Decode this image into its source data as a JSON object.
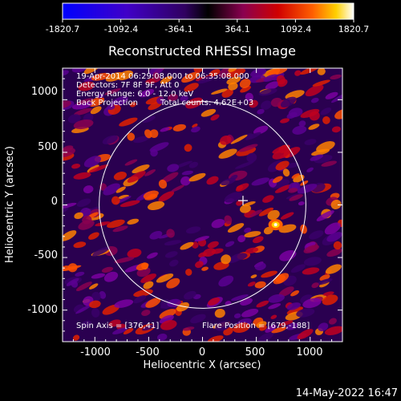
{
  "colorbar": {
    "tick_labels": [
      "-1820.7",
      "-1092.4",
      "-364.1",
      "364.1",
      "1092.4",
      "1820.7"
    ],
    "colors": [
      "#0000ff",
      "#5a00c0",
      "#3a0070",
      "#000000",
      "#8a0060",
      "#d00000",
      "#ff6000",
      "#ffd000",
      "#ffffff"
    ]
  },
  "plot": {
    "title": "Reconstructed RHESSI Image",
    "xlabel": "Heliocentric X (arcsec)",
    "ylabel": "Heliocentric Y (arcsec)",
    "x_tick_labels": [
      "-1000",
      "-500",
      "0",
      "500",
      "1000"
    ],
    "y_tick_labels": [
      "1000",
      "500",
      "0",
      "-500",
      "-1000"
    ],
    "annotations": {
      "time_range": "19-Apr-2014 06:29:08.000 to 06:35:08.000",
      "detectors": "Detectors: 7F 8F 9F, Att 0",
      "energy_range": "Energy Range: 6.0 - 12.0 keV",
      "method": "Back Projection",
      "total_counts": "Total counts: 4.62E+03",
      "spin_axis": "Spin Axis = [376,41]",
      "flare_position": "Flare Position = [679,-188]"
    }
  },
  "chart_data": {
    "type": "heatmap",
    "title": "Reconstructed RHESSI Image",
    "xlabel": "Heliocentric X (arcsec)",
    "ylabel": "Heliocentric Y (arcsec)",
    "xlim": [
      -1300,
      1300
    ],
    "ylim": [
      -1300,
      1300
    ],
    "color_range": [
      -1820.7,
      1820.7
    ],
    "solar_limb_radius": 960,
    "spin_axis": [
      376,
      41
    ],
    "flare_position": [
      679,
      -188
    ]
  },
  "footer": {
    "timestamp": "14-May-2022 16:47"
  }
}
